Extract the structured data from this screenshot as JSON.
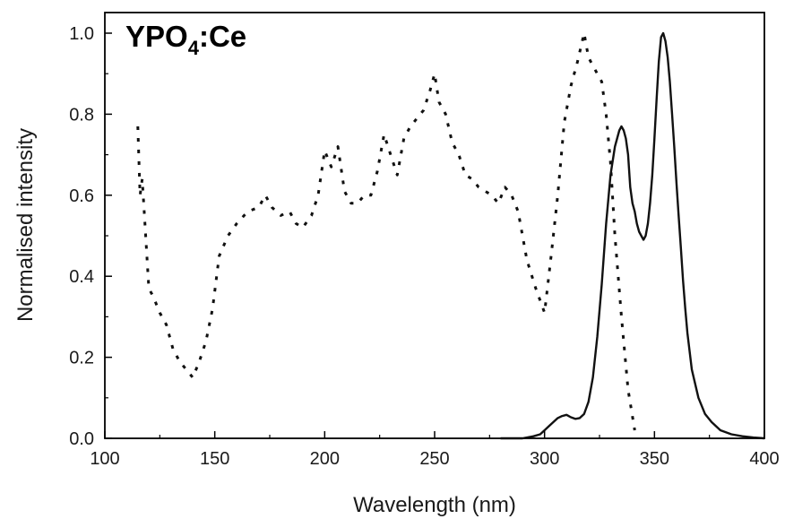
{
  "chart_data": {
    "type": "line",
    "title_main": "YPO",
    "title_sub": "4",
    "title_suffix": ":Ce",
    "xlabel": "Wavelength (nm)",
    "ylabel": "Normalised intensity",
    "xlim": [
      100,
      400
    ],
    "ylim": [
      0,
      1.05
    ],
    "xticks": [
      100,
      150,
      200,
      250,
      300,
      350,
      400
    ],
    "yticks": [
      0.0,
      0.2,
      0.4,
      0.6,
      0.8,
      1.0
    ],
    "xtick_labels": [
      "100",
      "150",
      "200",
      "250",
      "300",
      "350",
      "400"
    ],
    "ytick_labels": [
      "0.0",
      "0.2",
      "0.4",
      "0.6",
      "0.8",
      "1.0"
    ],
    "grid": false,
    "series": [
      {
        "style": "dotted",
        "color": "#111111",
        "x": [
          115,
          116,
          117,
          118,
          120,
          122,
          125,
          128,
          131,
          134,
          137,
          140,
          143,
          146,
          149,
          152,
          156,
          160,
          165,
          170,
          173,
          176,
          180,
          184,
          187,
          190,
          194,
          197,
          200,
          203,
          206,
          209,
          212,
          215,
          218,
          221,
          224,
          227,
          230,
          233,
          236,
          239,
          242,
          245,
          248,
          250,
          252,
          255,
          258,
          261,
          264,
          267,
          270,
          273,
          276,
          279,
          282,
          285,
          288,
          292,
          296,
          300,
          303,
          306,
          309,
          312,
          315,
          318,
          320,
          322,
          324,
          326,
          328,
          330,
          332,
          335,
          338,
          341
        ],
        "y": [
          0.77,
          0.6,
          0.64,
          0.55,
          0.37,
          0.35,
          0.31,
          0.28,
          0.22,
          0.19,
          0.17,
          0.15,
          0.19,
          0.24,
          0.32,
          0.45,
          0.5,
          0.53,
          0.56,
          0.57,
          0.6,
          0.57,
          0.55,
          0.56,
          0.53,
          0.52,
          0.55,
          0.6,
          0.71,
          0.67,
          0.72,
          0.61,
          0.58,
          0.58,
          0.6,
          0.6,
          0.66,
          0.75,
          0.7,
          0.65,
          0.74,
          0.77,
          0.79,
          0.81,
          0.86,
          0.9,
          0.83,
          0.8,
          0.73,
          0.7,
          0.65,
          0.64,
          0.62,
          0.61,
          0.6,
          0.58,
          0.62,
          0.6,
          0.56,
          0.44,
          0.37,
          0.31,
          0.45,
          0.6,
          0.78,
          0.87,
          0.93,
          1.0,
          0.94,
          0.92,
          0.9,
          0.88,
          0.8,
          0.68,
          0.5,
          0.3,
          0.12,
          0.02
        ]
      },
      {
        "style": "solid",
        "color": "#111111",
        "x": [
          280,
          285,
          290,
          295,
          298,
          300,
          302,
          304,
          306,
          308,
          310,
          312,
          314,
          316,
          318,
          320,
          322,
          324,
          326,
          328,
          330,
          332,
          334,
          335,
          336,
          337,
          338,
          339,
          340,
          341,
          342,
          343,
          344,
          345,
          346,
          347,
          348,
          349,
          350,
          351,
          352,
          353,
          354,
          355,
          356,
          357,
          358,
          359,
          360,
          361,
          362,
          363,
          364,
          365,
          367,
          370,
          373,
          376,
          380,
          385,
          390,
          395,
          400
        ],
        "y": [
          0.0,
          0.0,
          0.0,
          0.005,
          0.01,
          0.02,
          0.03,
          0.04,
          0.05,
          0.055,
          0.058,
          0.052,
          0.048,
          0.05,
          0.06,
          0.09,
          0.15,
          0.25,
          0.38,
          0.53,
          0.65,
          0.72,
          0.76,
          0.77,
          0.76,
          0.74,
          0.7,
          0.62,
          0.58,
          0.56,
          0.53,
          0.51,
          0.5,
          0.49,
          0.5,
          0.53,
          0.58,
          0.65,
          0.74,
          0.84,
          0.93,
          0.99,
          1.0,
          0.98,
          0.94,
          0.88,
          0.8,
          0.72,
          0.63,
          0.55,
          0.47,
          0.39,
          0.32,
          0.26,
          0.17,
          0.1,
          0.06,
          0.04,
          0.02,
          0.01,
          0.005,
          0.002,
          0.0
        ]
      }
    ]
  }
}
